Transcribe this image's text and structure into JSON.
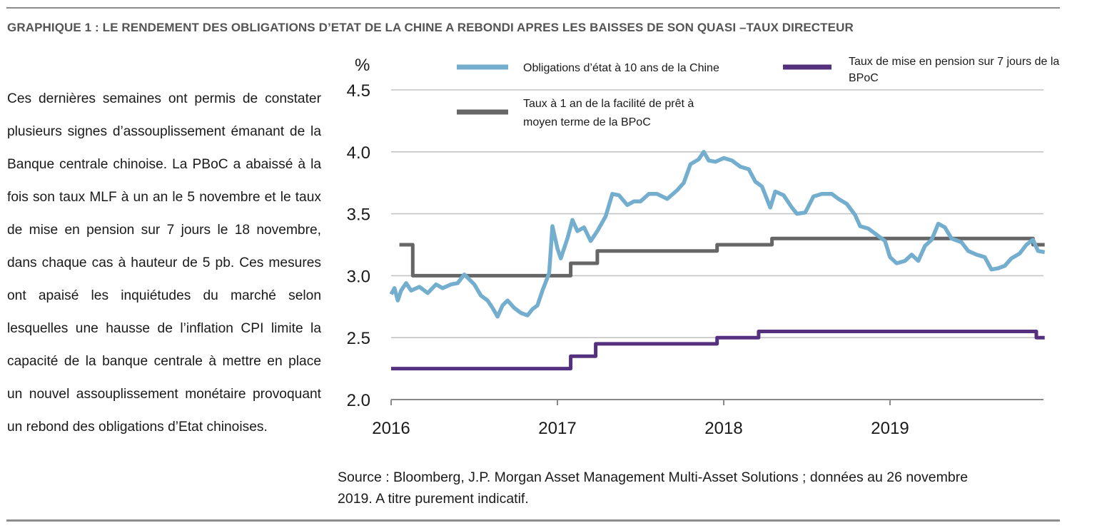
{
  "heading": "GRAPHIQUE 1 : LE RENDEMENT DES OBLIGATIONS D’ETAT DE LA CHINE A REBONDI APRES LES BAISSES DE SON QUASI –TAUX DIRECTEUR",
  "body_text": "Ces dernières semaines ont permis de constater plusieurs signes d’assouplissement émanant de la Banque centrale chinoise. La PBoC a abaissé à la fois son taux MLF à un an le 5 novembre et le taux de mise en pension sur 7 jours le 18 novembre, dans chaque cas à hauteur de 5 pb. Ces mesures ont apaisé les inquiétudes du marché selon lesquelles une hausse de l’inflation CPI limite la capacité de la banque centrale à mettre en place un nouvel assouplissement monétaire provoquant un rebond des obligations d’Etat chinoises.",
  "source_line1": "Source : Bloomberg, J.P. Morgan Asset Management Multi-Asset Solutions ; données au 26 novembre",
  "source_line2": "2019. A titre purement indicatif.",
  "chart_data": {
    "type": "line",
    "ylabel": "%",
    "ylim": [
      2.0,
      4.5
    ],
    "yticks": [
      "2.0",
      "2.5",
      "3.0",
      "3.5",
      "4.0",
      "4.5"
    ],
    "xticks": [
      "2016",
      "2017",
      "2018",
      "2019"
    ],
    "xlim": [
      2016.0,
      2019.95
    ],
    "grid": "horizontal",
    "legend": {
      "bond_line1": "Obligations d’état à 10 ans de la Chine",
      "mlf_line1": "Taux à 1 an de la facilité de prêt à",
      "mlf_line2": "moyen terme de la BPoC",
      "repo_line1": "Taux de mise en pension sur 7 jours de la",
      "repo_line2": "BPoC"
    },
    "colors": {
      "bond": "#74aecf",
      "mlf": "#666666",
      "repo": "#55307f",
      "grid": "#c4c4c4"
    },
    "series": [
      {
        "name": "Obligations d’état à 10 ans de la Chine",
        "points": [
          [
            2016.0,
            2.85
          ],
          [
            2016.02,
            2.9
          ],
          [
            2016.04,
            2.8
          ],
          [
            2016.06,
            2.88
          ],
          [
            2016.09,
            2.94
          ],
          [
            2016.12,
            2.88
          ],
          [
            2016.17,
            2.91
          ],
          [
            2016.22,
            2.86
          ],
          [
            2016.27,
            2.93
          ],
          [
            2016.31,
            2.9
          ],
          [
            2016.36,
            2.93
          ],
          [
            2016.4,
            2.94
          ],
          [
            2016.44,
            3.01
          ],
          [
            2016.47,
            2.97
          ],
          [
            2016.5,
            2.93
          ],
          [
            2016.54,
            2.84
          ],
          [
            2016.58,
            2.8
          ],
          [
            2016.61,
            2.74
          ],
          [
            2016.64,
            2.67
          ],
          [
            2016.67,
            2.76
          ],
          [
            2016.7,
            2.8
          ],
          [
            2016.74,
            2.74
          ],
          [
            2016.78,
            2.7
          ],
          [
            2016.82,
            2.68
          ],
          [
            2016.85,
            2.73
          ],
          [
            2016.88,
            2.76
          ],
          [
            2016.91,
            2.88
          ],
          [
            2016.95,
            3.02
          ],
          [
            2016.97,
            3.4
          ],
          [
            2017.0,
            3.22
          ],
          [
            2017.02,
            3.14
          ],
          [
            2017.06,
            3.3
          ],
          [
            2017.09,
            3.45
          ],
          [
            2017.12,
            3.36
          ],
          [
            2017.16,
            3.39
          ],
          [
            2017.2,
            3.28
          ],
          [
            2017.24,
            3.36
          ],
          [
            2017.29,
            3.48
          ],
          [
            2017.33,
            3.66
          ],
          [
            2017.37,
            3.65
          ],
          [
            2017.42,
            3.57
          ],
          [
            2017.46,
            3.6
          ],
          [
            2017.5,
            3.6
          ],
          [
            2017.55,
            3.66
          ],
          [
            2017.6,
            3.66
          ],
          [
            2017.66,
            3.62
          ],
          [
            2017.72,
            3.69
          ],
          [
            2017.76,
            3.75
          ],
          [
            2017.8,
            3.9
          ],
          [
            2017.85,
            3.94
          ],
          [
            2017.88,
            4.0
          ],
          [
            2017.91,
            3.93
          ],
          [
            2017.95,
            3.92
          ],
          [
            2018.0,
            3.95
          ],
          [
            2018.05,
            3.93
          ],
          [
            2018.1,
            3.88
          ],
          [
            2018.15,
            3.86
          ],
          [
            2018.19,
            3.76
          ],
          [
            2018.23,
            3.72
          ],
          [
            2018.28,
            3.55
          ],
          [
            2018.31,
            3.68
          ],
          [
            2018.36,
            3.65
          ],
          [
            2018.41,
            3.55
          ],
          [
            2018.44,
            3.5
          ],
          [
            2018.49,
            3.51
          ],
          [
            2018.54,
            3.64
          ],
          [
            2018.59,
            3.66
          ],
          [
            2018.65,
            3.66
          ],
          [
            2018.69,
            3.62
          ],
          [
            2018.74,
            3.58
          ],
          [
            2018.79,
            3.49
          ],
          [
            2018.82,
            3.4
          ],
          [
            2018.87,
            3.38
          ],
          [
            2018.92,
            3.33
          ],
          [
            2018.97,
            3.28
          ],
          [
            2019.0,
            3.15
          ],
          [
            2019.04,
            3.1
          ],
          [
            2019.09,
            3.12
          ],
          [
            2019.13,
            3.17
          ],
          [
            2019.17,
            3.12
          ],
          [
            2019.21,
            3.24
          ],
          [
            2019.25,
            3.29
          ],
          [
            2019.29,
            3.42
          ],
          [
            2019.33,
            3.39
          ],
          [
            2019.37,
            3.3
          ],
          [
            2019.43,
            3.27
          ],
          [
            2019.47,
            3.2
          ],
          [
            2019.52,
            3.17
          ],
          [
            2019.57,
            3.15
          ],
          [
            2019.61,
            3.05
          ],
          [
            2019.65,
            3.06
          ],
          [
            2019.69,
            3.08
          ],
          [
            2019.73,
            3.14
          ],
          [
            2019.78,
            3.18
          ],
          [
            2019.82,
            3.25
          ],
          [
            2019.86,
            3.29
          ],
          [
            2019.89,
            3.2
          ],
          [
            2019.93,
            3.19
          ]
        ]
      },
      {
        "name": "Taux à 1 an de la facilité de prêt à moyen terme de la BPoC",
        "points": [
          [
            2016.05,
            3.25
          ],
          [
            2016.13,
            3.25
          ],
          [
            2016.13,
            3.0
          ],
          [
            2017.08,
            3.0
          ],
          [
            2017.08,
            3.1
          ],
          [
            2017.24,
            3.1
          ],
          [
            2017.24,
            3.2
          ],
          [
            2017.96,
            3.2
          ],
          [
            2017.96,
            3.25
          ],
          [
            2018.29,
            3.25
          ],
          [
            2018.29,
            3.3
          ],
          [
            2019.86,
            3.3
          ],
          [
            2019.86,
            3.25
          ],
          [
            2019.93,
            3.25
          ]
        ]
      },
      {
        "name": "Taux de mise en pension sur 7 jours de la BPoC",
        "points": [
          [
            2016.0,
            2.25
          ],
          [
            2017.08,
            2.25
          ],
          [
            2017.08,
            2.35
          ],
          [
            2017.23,
            2.35
          ],
          [
            2017.23,
            2.45
          ],
          [
            2017.96,
            2.45
          ],
          [
            2017.96,
            2.5
          ],
          [
            2018.21,
            2.5
          ],
          [
            2018.21,
            2.55
          ],
          [
            2019.88,
            2.55
          ],
          [
            2019.88,
            2.5
          ],
          [
            2019.93,
            2.5
          ]
        ]
      }
    ]
  }
}
